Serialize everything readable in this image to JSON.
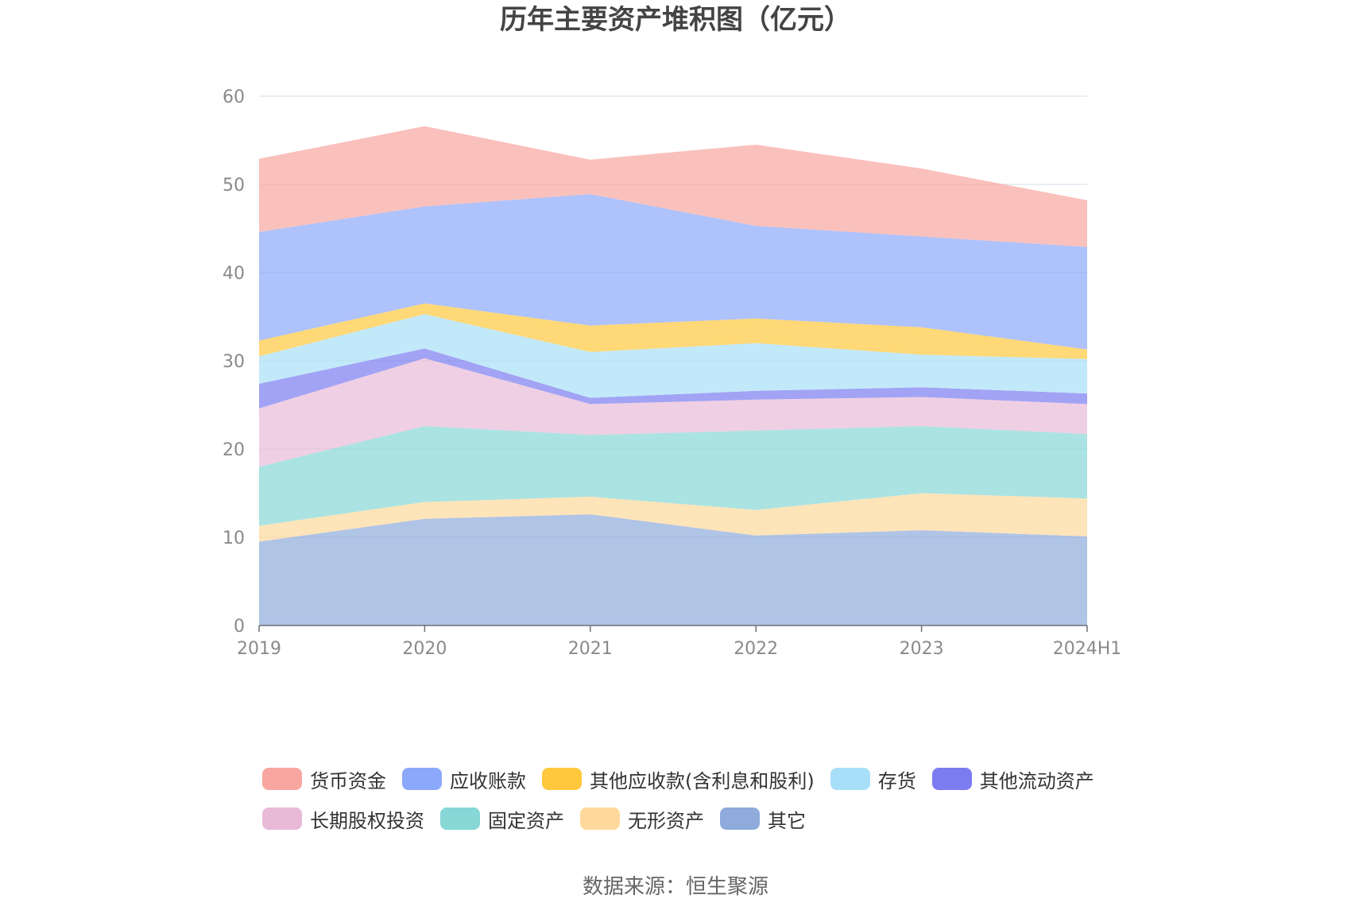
{
  "title": "历年主要资产堆积图（亿元）",
  "source": "数据来源：恒生聚源",
  "colors": {
    "货币资金": "#f8a69f",
    "应收账款": "#8ca8fb",
    "其他应收款(含利息和股利)": "#ffc83d",
    "存货": "#a8dff8",
    "其他流动资产": "#7b7cf0",
    "长期股权投资": "#e8bad8",
    "固定资产": "#86d7d6",
    "无形资产": "#fed99b",
    "其它": "#8eabdb"
  },
  "chart_data": {
    "type": "area",
    "stacked": true,
    "categories": [
      "2019",
      "2020",
      "2021",
      "2022",
      "2023",
      "2024H1"
    ],
    "ylim": [
      0,
      60
    ],
    "yticks": [
      0,
      10,
      20,
      30,
      40,
      50,
      60
    ],
    "grid": true,
    "legend_position": "bottom",
    "series": [
      {
        "name": "其它",
        "values": [
          9.5,
          12.1,
          12.6,
          10.2,
          10.8,
          10.1
        ]
      },
      {
        "name": "无形资产",
        "values": [
          1.8,
          1.9,
          2.0,
          2.9,
          4.2,
          4.3
        ]
      },
      {
        "name": "固定资产",
        "values": [
          6.7,
          8.6,
          7.0,
          9.0,
          7.6,
          7.3
        ]
      },
      {
        "name": "长期股权投资",
        "values": [
          6.6,
          7.7,
          3.5,
          3.5,
          3.3,
          3.4
        ]
      },
      {
        "name": "其他流动资产",
        "values": [
          2.8,
          1.1,
          0.7,
          1.0,
          1.1,
          1.2
        ]
      },
      {
        "name": "存货",
        "values": [
          3.1,
          3.9,
          5.2,
          5.4,
          3.7,
          3.9
        ]
      },
      {
        "name": "其他应收款(含利息和股利)",
        "values": [
          1.8,
          1.2,
          3.0,
          2.8,
          3.1,
          1.1
        ]
      },
      {
        "name": "应收账款",
        "values": [
          12.3,
          11.0,
          14.9,
          10.5,
          10.3,
          11.6
        ]
      },
      {
        "name": "货币资金",
        "values": [
          8.3,
          9.1,
          3.9,
          9.2,
          7.7,
          5.3
        ]
      }
    ],
    "legend": [
      [
        "货币资金",
        "应收账款",
        "其他应收款(含利息和股利)",
        "存货",
        "其他流动资产"
      ],
      [
        "长期股权投资",
        "固定资产",
        "无形资产",
        "其它"
      ]
    ]
  }
}
